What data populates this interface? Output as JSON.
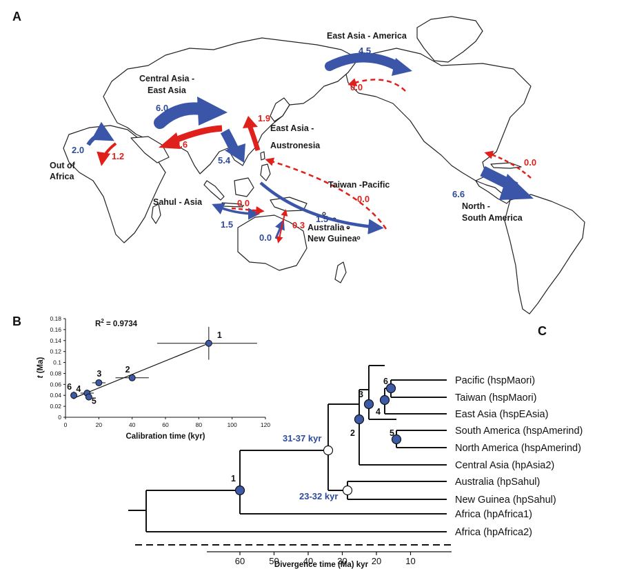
{
  "panels": {
    "a": "A",
    "b": "B",
    "c": "C"
  },
  "colors": {
    "blue": "#3b55a8",
    "red": "#e0201b",
    "node": "#3d5aa6"
  },
  "map": {
    "regions": {
      "east_asia_america": "East Asia - America",
      "central_asia_1": "Central Asia -",
      "central_asia_2": "East Asia",
      "east_asia_austronesia_1": "East Asia -",
      "east_asia_austronesia_2": "Austronesia",
      "out_of_africa_1": "Out of",
      "out_of_africa_2": "Africa",
      "taiwan_pacific": "Taiwan -Pacific",
      "sahul_asia": "Sahul - Asia",
      "australia_ng_1": "Australia -",
      "australia_ng_2": "New Guinea",
      "north_south_1": "North -",
      "north_south_2": "South America"
    },
    "rates": {
      "ea_am_blue": "4.5",
      "ea_am_red": "0.0",
      "ca_ea_blue": "6.0",
      "ca_ea_red": "2.6",
      "ea_au_blue": "5.4",
      "ea_au_red": "1.9",
      "ooa_blue": "2.0",
      "ooa_red": "1.2",
      "tp_blue": "1.5",
      "tp_red": "0.0",
      "sa_blue": "1.5",
      "sa_red": "0.0",
      "ang_blue": "0.0",
      "ang_red": "0.3",
      "nsa_blue": "6.6",
      "nsa_red": "0.0"
    }
  },
  "scatter": {
    "r2_label": "R",
    "r2_sup": "2",
    "r2_value": " = 0.9734",
    "xlabel": "Calibration time (kyr)",
    "ylabel_t": "t",
    "ylabel_rest": " (Ma)",
    "x_ticks": [
      "0",
      "20",
      "40",
      "60",
      "80",
      "100",
      "120"
    ],
    "y_ticks": [
      "0",
      "0.02",
      "0.04",
      "0.06",
      "0.08",
      "0.1",
      "0.12",
      "0.14",
      "0.16",
      "0.18"
    ]
  },
  "chart_data": {
    "type": "scatter",
    "xlabel": "Calibration time (kyr)",
    "ylabel": "t (Ma)",
    "xlim": [
      0,
      120
    ],
    "ylim": [
      0,
      0.18
    ],
    "points": [
      {
        "label": "1",
        "x": 86,
        "y": 0.135,
        "x_err": [
          55,
          115
        ],
        "y_err": [
          0.105,
          0.165
        ]
      },
      {
        "label": "2",
        "x": 40,
        "y": 0.072,
        "x_err": [
          30,
          50
        ],
        "y_err": [
          0.068,
          0.076
        ]
      },
      {
        "label": "3",
        "x": 20,
        "y": 0.063,
        "x_err": [
          16,
          24
        ],
        "y_err": [
          0.06,
          0.066
        ]
      },
      {
        "label": "4",
        "x": 13,
        "y": 0.044,
        "x_err": [
          9,
          17
        ],
        "y_err": [
          0.04,
          0.048
        ]
      },
      {
        "label": "5",
        "x": 14,
        "y": 0.037,
        "x_err": [
          12,
          16
        ],
        "y_err": [
          0.034,
          0.04
        ]
      },
      {
        "label": "6",
        "x": 5,
        "y": 0.04,
        "x_err": [
          3,
          7
        ],
        "y_err": [
          0.033,
          0.047
        ]
      }
    ],
    "fit_line": {
      "x": [
        5,
        86
      ],
      "y": [
        0.035,
        0.135
      ]
    }
  },
  "tree": {
    "leaves": [
      "Pacific (hspMaori)",
      "Taiwan (hspMaori)",
      "East Asia (hspEAsia)",
      "South America (hspAmerind)",
      "North America (hspAmerind)",
      "Central Asia (hpAsia2)",
      "Australia (hpSahul)",
      "New Guinea (hpSahul)",
      "Africa (hpAfrica1)",
      "Africa (hpAfrica2)"
    ],
    "node_labels": [
      "1",
      "2",
      "3",
      "4",
      "5",
      "6"
    ],
    "dates": {
      "d1": "31-37 kyr",
      "d2": "23-32 kyr"
    },
    "axis_ticks": [
      "60",
      "50",
      "40",
      "30",
      "20",
      "10"
    ],
    "axis_label": "Divergence time (Ma) kyr"
  }
}
